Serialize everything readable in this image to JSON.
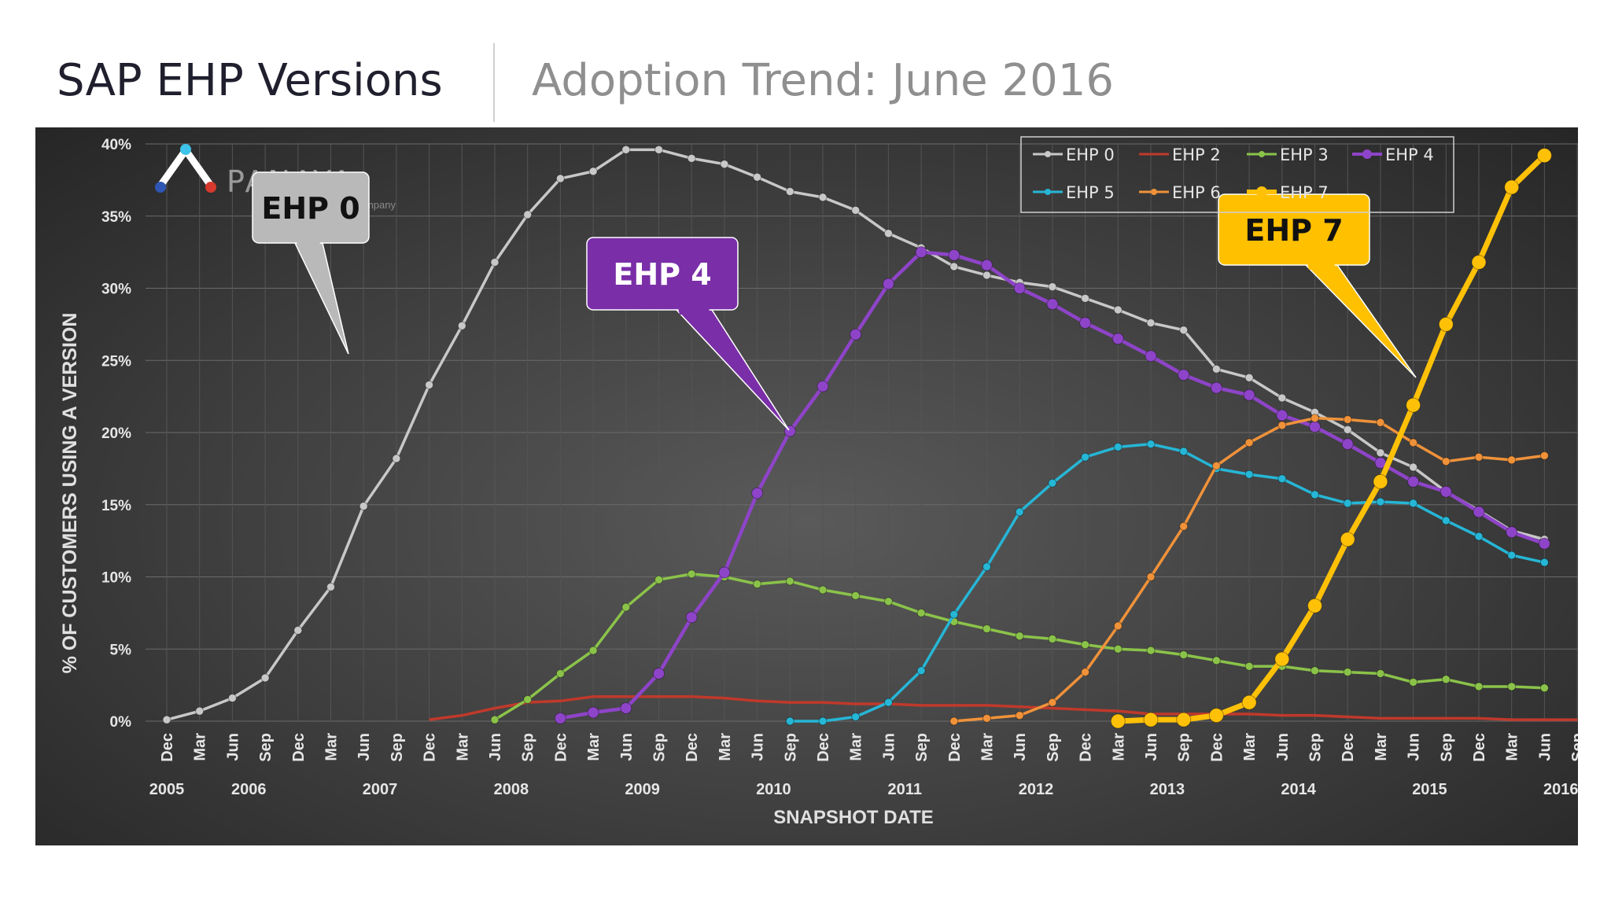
{
  "slide": {
    "title": "SAP EHP Versions",
    "subtitle": "Adoption Trend: June 2016"
  },
  "logo": {
    "name": "PANAYA",
    "tagline": "An Infosys company"
  },
  "colors": {
    "EHP 0": "#c8c8c8",
    "EHP 2": "#c0392b",
    "EHP 3": "#8bc34a",
    "EHP 4": "#8e44c8",
    "EHP 5": "#26b6d6",
    "EHP 6": "#f0923a",
    "EHP 7": "#ffc107"
  },
  "callouts": [
    {
      "label": "EHP 0",
      "series": "EHP 0"
    },
    {
      "label": "EHP 4",
      "series": "EHP 4"
    },
    {
      "label": "EHP 7",
      "series": "EHP 7"
    }
  ],
  "chart_data": {
    "type": "line",
    "xlabel": "SNAPSHOT DATE",
    "ylabel": "% OF CUSTOMERS USING A VERSION",
    "ylim": [
      0,
      40
    ],
    "yticks": [
      "0%",
      "5%",
      "10%",
      "15%",
      "20%",
      "25%",
      "30%",
      "35%",
      "40%"
    ],
    "grid": true,
    "legend_position": "top-right",
    "x_labels": [
      "Dec",
      "Mar",
      "Jun",
      "Sep",
      "Dec",
      "Mar",
      "Jun",
      "Sep",
      "Dec",
      "Mar",
      "Jun",
      "Sep",
      "Dec",
      "Mar",
      "Jun",
      "Sep",
      "Dec",
      "Mar",
      "Jun",
      "Sep",
      "Dec",
      "Mar",
      "Jun",
      "Sep",
      "Dec",
      "Mar",
      "Jun",
      "Sep",
      "Dec",
      "Mar",
      "Jun",
      "Sep",
      "Dec",
      "Mar",
      "Jun",
      "Sep",
      "Dec",
      "Mar",
      "Jun",
      "Sep",
      "Dec",
      "Mar",
      "Jun",
      "Sep",
      "Dec",
      "Mar",
      "Jun"
    ],
    "years": [
      {
        "label": "2005",
        "index": 0
      },
      {
        "label": "2006",
        "index": 2.5
      },
      {
        "label": "2007",
        "index": 6.5
      },
      {
        "label": "2008",
        "index": 10.5
      },
      {
        "label": "2009",
        "index": 14.5
      },
      {
        "label": "2010",
        "index": 18.5
      },
      {
        "label": "2011",
        "index": 22.5
      },
      {
        "label": "2012",
        "index": 26.5
      },
      {
        "label": "2013",
        "index": 30.5
      },
      {
        "label": "2014",
        "index": 34.5
      },
      {
        "label": "2015",
        "index": 38.5
      },
      {
        "label": "2016",
        "index": 42.5
      }
    ],
    "series": [
      {
        "name": "EHP 0",
        "start": 0,
        "values": [
          0.1,
          0.7,
          1.6,
          3.0,
          6.3,
          9.3,
          14.9,
          18.2,
          23.3,
          27.4,
          31.8,
          35.1,
          37.6,
          38.1,
          39.6,
          39.6,
          39.0,
          38.6,
          37.7,
          36.7,
          36.3,
          35.4,
          33.8,
          32.8,
          31.5,
          30.9,
          30.4,
          30.1,
          29.3,
          28.5,
          27.6,
          27.1,
          24.4,
          23.8,
          22.4,
          21.4,
          20.2,
          18.6,
          17.6,
          15.9,
          14.6,
          13.2,
          12.6
        ]
      },
      {
        "name": "EHP 2",
        "start": 8,
        "values": [
          0.1,
          0.4,
          0.9,
          1.3,
          1.4,
          1.7,
          1.7,
          1.7,
          1.7,
          1.6,
          1.4,
          1.3,
          1.3,
          1.2,
          1.2,
          1.1,
          1.1,
          1.1,
          1.0,
          0.9,
          0.8,
          0.7,
          0.5,
          0.5,
          0.5,
          0.5,
          0.4,
          0.4,
          0.3,
          0.2,
          0.2,
          0.2,
          0.2,
          0.1,
          0.1,
          0.1
        ]
      },
      {
        "name": "EHP 3",
        "start": 10,
        "values": [
          0.1,
          1.5,
          3.3,
          4.9,
          7.9,
          9.8,
          10.2,
          10.0,
          9.5,
          9.7,
          9.1,
          8.7,
          8.3,
          7.5,
          6.9,
          6.4,
          5.9,
          5.7,
          5.3,
          5.0,
          4.9,
          4.6,
          4.2,
          3.8,
          3.8,
          3.5,
          3.4,
          3.3,
          2.7,
          2.9,
          2.4,
          2.4,
          2.3
        ]
      },
      {
        "name": "EHP 4",
        "start": 12,
        "values": [
          0.2,
          0.6,
          0.9,
          3.3,
          7.2,
          10.3,
          15.8,
          20.1,
          23.2,
          26.8,
          30.3,
          32.5,
          32.3,
          31.6,
          30.0,
          28.9,
          27.6,
          26.5,
          25.3,
          24.0,
          23.1,
          22.6,
          21.2,
          20.4,
          19.2,
          17.9,
          16.6,
          15.9,
          14.5,
          13.1,
          12.3
        ]
      },
      {
        "name": "EHP 5",
        "start": 19,
        "values": [
          0.0,
          0.0,
          0.3,
          1.3,
          3.5,
          7.4,
          10.7,
          14.5,
          16.5,
          18.3,
          19.0,
          19.2,
          18.7,
          17.5,
          17.1,
          16.8,
          15.7,
          15.1,
          15.2,
          15.1,
          13.9,
          12.8,
          11.5,
          11.0
        ]
      },
      {
        "name": "EHP 6",
        "start": 24,
        "values": [
          0.0,
          0.2,
          0.4,
          1.3,
          3.4,
          6.6,
          10.0,
          13.5,
          17.7,
          19.3,
          20.5,
          21.0,
          20.9,
          20.7,
          19.3,
          18.0,
          18.3,
          18.1,
          18.4
        ]
      },
      {
        "name": "EHP 7",
        "start": 29,
        "values": [
          0.0,
          0.1,
          0.1,
          0.4,
          1.3,
          4.3,
          8.0,
          12.6,
          16.6,
          21.9,
          27.5,
          31.8,
          37.0,
          39.2
        ]
      }
    ]
  }
}
